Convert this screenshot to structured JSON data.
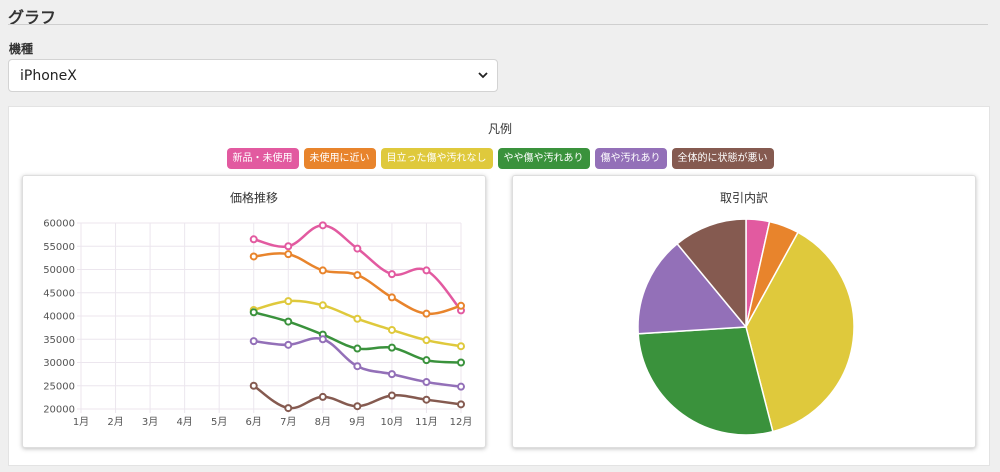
{
  "header": {
    "title": "グラフ"
  },
  "model_select": {
    "label": "機種",
    "value": "iPhoneX"
  },
  "legend": {
    "title": "凡例",
    "items": [
      {
        "label": "新品・未使用",
        "color": "#e25aa0"
      },
      {
        "label": "未使用に近い",
        "color": "#e8842c"
      },
      {
        "label": "目立った傷や汚れなし",
        "color": "#dfc93c"
      },
      {
        "label": "やや傷や汚れあり",
        "color": "#3a923c"
      },
      {
        "label": "傷や汚れあり",
        "color": "#9370b8"
      },
      {
        "label": "全体的に状態が悪い",
        "color": "#855a50"
      }
    ]
  },
  "chart_data": [
    {
      "type": "line",
      "title": "価格推移",
      "categories": [
        "1月",
        "2月",
        "3月",
        "4月",
        "5月",
        "6月",
        "7月",
        "8月",
        "9月",
        "10月",
        "11月",
        "12月"
      ],
      "ylim": [
        20000,
        60000
      ],
      "yticks": [
        20000,
        25000,
        30000,
        35000,
        40000,
        45000,
        50000,
        55000,
        60000
      ],
      "grid": true,
      "series": [
        {
          "name": "新品・未使用",
          "color": "#e25aa0",
          "values": [
            null,
            null,
            null,
            null,
            null,
            56500,
            55000,
            59500,
            54500,
            49000,
            49800,
            41200
          ]
        },
        {
          "name": "未使用に近い",
          "color": "#e8842c",
          "values": [
            null,
            null,
            null,
            null,
            null,
            52800,
            53300,
            49800,
            48800,
            44000,
            40500,
            42200
          ]
        },
        {
          "name": "目立った傷や汚れなし",
          "color": "#dfc93c",
          "values": [
            null,
            null,
            null,
            null,
            null,
            41300,
            43200,
            42300,
            39400,
            37000,
            34800,
            33500
          ]
        },
        {
          "name": "やや傷や汚れあり",
          "color": "#3a923c",
          "values": [
            null,
            null,
            null,
            null,
            null,
            40800,
            38800,
            36000,
            33000,
            33200,
            30500,
            30000
          ]
        },
        {
          "name": "傷や汚れあり",
          "color": "#9370b8",
          "values": [
            null,
            null,
            null,
            null,
            null,
            34600,
            33800,
            35000,
            29200,
            27500,
            25800,
            24800
          ]
        },
        {
          "name": "全体的に状態が悪い",
          "color": "#855a50",
          "values": [
            null,
            null,
            null,
            null,
            null,
            25000,
            20200,
            22600,
            20600,
            22900,
            22000,
            21000
          ]
        }
      ]
    },
    {
      "type": "pie",
      "title": "取引内訳",
      "labels": [
        "新品・未使用",
        "未使用に近い",
        "目立った傷や汚れなし",
        "やや傷や汚れあり",
        "傷や汚れあり",
        "全体的に状態が悪い"
      ],
      "values": [
        3.5,
        4.5,
        38,
        28,
        15,
        11
      ],
      "colors": [
        "#e25aa0",
        "#e8842c",
        "#dfc93c",
        "#3a923c",
        "#9370b8",
        "#855a50"
      ]
    }
  ]
}
